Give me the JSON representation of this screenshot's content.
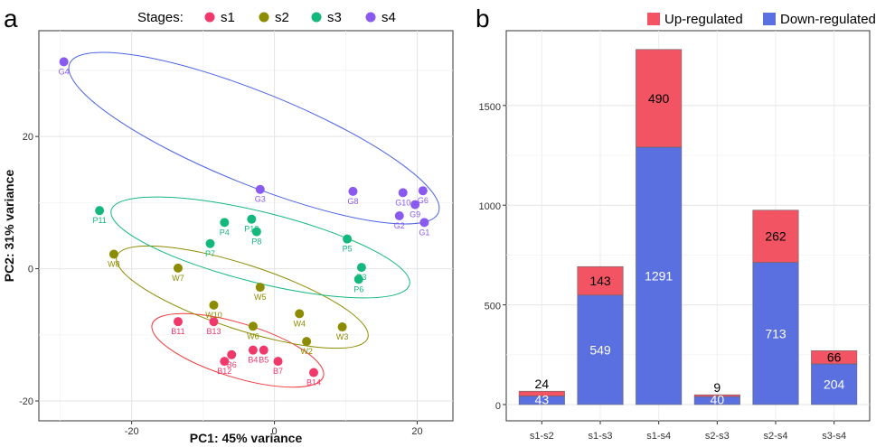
{
  "panels": {
    "a": "a",
    "b": "b"
  },
  "chart_data": [
    {
      "type": "scatter",
      "xlabel": "PC1: 45% variance",
      "ylabel": "PC2: 31% variance",
      "xlim": [
        -33,
        25
      ],
      "ylim": [
        -23,
        36
      ],
      "xticks": [
        -20,
        0,
        20
      ],
      "xtick_labels": [
        "-20",
        "0",
        "20"
      ],
      "yticks": [
        -20,
        0,
        20
      ],
      "ytick_labels": [
        "-20",
        "0",
        "20"
      ],
      "grid": true,
      "legend": {
        "title": "Stages:",
        "position": "top"
      },
      "series": [
        {
          "name": "s1",
          "color": "#f0386b",
          "points": [
            {
              "label": "B11",
              "x": -13.5,
              "y": -8
            },
            {
              "label": "B13",
              "x": -8.5,
              "y": -8
            },
            {
              "label": "B12",
              "x": -7,
              "y": -14
            },
            {
              "label": "B6",
              "x": -6,
              "y": -13
            },
            {
              "label": "B4",
              "x": -3,
              "y": -12.3
            },
            {
              "label": "B5",
              "x": -1.5,
              "y": -12.3
            },
            {
              "label": "B7",
              "x": 0.5,
              "y": -14
            },
            {
              "label": "B14",
              "x": 5.5,
              "y": -15.7
            }
          ]
        },
        {
          "name": "s2",
          "color": "#8c8c00",
          "points": [
            {
              "label": "W8",
              "x": -22.5,
              "y": 2.2
            },
            {
              "label": "W7",
              "x": -13.5,
              "y": 0.1
            },
            {
              "label": "W10",
              "x": -8.5,
              "y": -5.5
            },
            {
              "label": "W5",
              "x": -2,
              "y": -2.8
            },
            {
              "label": "W6",
              "x": -3,
              "y": -8.7
            },
            {
              "label": "W4",
              "x": 3.5,
              "y": -6.8
            },
            {
              "label": "W2",
              "x": 4.5,
              "y": -11
            },
            {
              "label": "W3",
              "x": 9.5,
              "y": -8.8
            }
          ]
        },
        {
          "name": "s3",
          "color": "#14b77c",
          "points": [
            {
              "label": "P11",
              "x": -24.5,
              "y": 8.8
            },
            {
              "label": "P4",
              "x": -7,
              "y": 7
            },
            {
              "label": "P13",
              "x": -3.2,
              "y": 7.5
            },
            {
              "label": "P7",
              "x": -9,
              "y": 3.8
            },
            {
              "label": "P8",
              "x": -2.5,
              "y": 5.6
            },
            {
              "label": "P5",
              "x": 10.2,
              "y": 4.5
            },
            {
              "label": "P3",
              "x": 12.2,
              "y": 0.2
            },
            {
              "label": "P6",
              "x": 11.8,
              "y": -1.6
            }
          ]
        },
        {
          "name": "s4",
          "color": "#8a59f0",
          "points": [
            {
              "label": "G4",
              "x": -29.5,
              "y": 31.3
            },
            {
              "label": "G3",
              "x": -2,
              "y": 12
            },
            {
              "label": "G8",
              "x": 11,
              "y": 11.7
            },
            {
              "label": "G10",
              "x": 18,
              "y": 11.5
            },
            {
              "label": "G6",
              "x": 20.8,
              "y": 11.8
            },
            {
              "label": "G9",
              "x": 19.7,
              "y": 9.7
            },
            {
              "label": "G2",
              "x": 17.5,
              "y": 8
            },
            {
              "label": "G1",
              "x": 21,
              "y": 7
            }
          ]
        }
      ]
    },
    {
      "type": "bar",
      "stacked": true,
      "categories": [
        "s1-s2",
        "s1-s3",
        "s1-s4",
        "s2-s3",
        "s2-s4",
        "s3-s4"
      ],
      "ylim": [
        0,
        1800
      ],
      "yticks": [
        0,
        500,
        1000,
        1500
      ],
      "grid": true,
      "legend": {
        "position": "top-right"
      },
      "series": [
        {
          "name": "Down-regulated",
          "color": "#5a6fe0",
          "label_color": "#ffffff",
          "values": [
            43,
            549,
            1291,
            40,
            713,
            204
          ]
        },
        {
          "name": "Up-regulated",
          "color": "#f25464",
          "label_color": "#000000",
          "values": [
            24,
            143,
            490,
            9,
            262,
            66
          ]
        }
      ]
    }
  ]
}
